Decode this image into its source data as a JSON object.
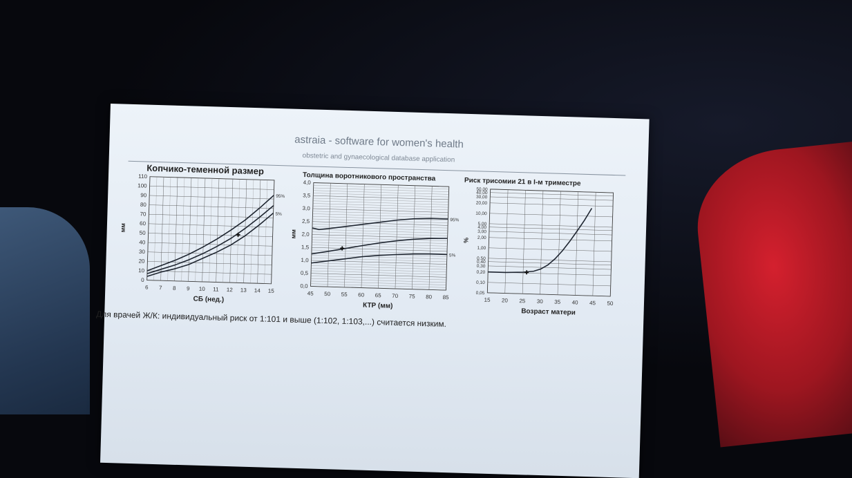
{
  "header": {
    "title": "astraia - software for women's health",
    "subtitle": "obstetric and gynaecological database application"
  },
  "footer": {
    "note": "Для врачей Ж/К: индивидуальный риск от 1:101 и выше (1:102, 1:103,...) считается низким."
  },
  "chart_data": [
    {
      "type": "line",
      "title": "Копчико-теменной размер",
      "xlabel": "СБ (нед.)",
      "ylabel": "мм",
      "xlim": [
        6,
        15
      ],
      "ylim": [
        0,
        110
      ],
      "x_ticks": [
        "6",
        "7",
        "8",
        "9",
        "10",
        "11",
        "12",
        "13",
        "14",
        "15"
      ],
      "y_ticks": [
        "0",
        "10",
        "20",
        "30",
        "40",
        "50",
        "60",
        "70",
        "80",
        "90",
        "100",
        "110"
      ],
      "grid": true,
      "series": [
        {
          "name": "95%",
          "x": [
            6,
            7,
            8,
            9,
            10,
            11,
            12,
            13,
            14,
            15
          ],
          "y": [
            10,
            16,
            22,
            29,
            37,
            46,
            56,
            67,
            80,
            94
          ]
        },
        {
          "name": "",
          "x": [
            6,
            7,
            8,
            9,
            10,
            11,
            12,
            13,
            14,
            15
          ],
          "y": [
            7,
            12,
            17,
            23,
            30,
            38,
            47,
            58,
            70,
            83
          ]
        },
        {
          "name": "5%",
          "x": [
            6,
            7,
            8,
            9,
            10,
            11,
            12,
            13,
            14,
            15
          ],
          "y": [
            4,
            9,
            13,
            18,
            25,
            32,
            40,
            50,
            62,
            75
          ]
        }
      ],
      "marker": {
        "x": 12.5,
        "y": 51
      }
    },
    {
      "type": "line",
      "title": "Толщина воротникового пространства",
      "xlabel": "КТР (мм)",
      "ylabel": "мм",
      "xlim": [
        45,
        85
      ],
      "ylim": [
        0,
        4
      ],
      "x_ticks": [
        "45",
        "50",
        "55",
        "60",
        "65",
        "70",
        "75",
        "80",
        "85"
      ],
      "y_ticks": [
        "0,0",
        "0,5",
        "1,0",
        "1,5",
        "2,0",
        "2,5",
        "3,0",
        "3,5",
        "4,0"
      ],
      "grid": true,
      "series": [
        {
          "name": "95%",
          "x": [
            45,
            47,
            50,
            55,
            60,
            65,
            70,
            75,
            80,
            85
          ],
          "y": [
            2.25,
            2.2,
            2.25,
            2.35,
            2.45,
            2.55,
            2.65,
            2.72,
            2.75,
            2.75
          ]
        },
        {
          "name": "",
          "x": [
            45,
            50,
            55,
            60,
            65,
            70,
            75,
            80,
            85
          ],
          "y": [
            1.25,
            1.37,
            1.5,
            1.63,
            1.75,
            1.85,
            1.93,
            1.98,
            2.0
          ]
        },
        {
          "name": "5%",
          "x": [
            45,
            50,
            55,
            60,
            65,
            70,
            75,
            80,
            85
          ],
          "y": [
            0.9,
            1.0,
            1.1,
            1.2,
            1.27,
            1.32,
            1.36,
            1.38,
            1.38
          ]
        }
      ],
      "marker": {
        "x": 54,
        "y": 1.5
      }
    },
    {
      "type": "line",
      "title": "Риск трисомии 21 в I-м триместре",
      "xlabel": "Возраст матери",
      "ylabel": "%",
      "xlim": [
        15,
        50
      ],
      "y_scale": "log",
      "ylim": [
        0.05,
        50
      ],
      "x_ticks": [
        "15",
        "20",
        "25",
        "30",
        "35",
        "40",
        "45",
        "50"
      ],
      "y_ticks": [
        {
          "value": 0.05,
          "label": "0,05"
        },
        {
          "value": 0.1,
          "label": "0,10"
        },
        {
          "value": 0.2,
          "label": "0,20"
        },
        {
          "value": 0.3,
          "label": "0,30"
        },
        {
          "value": 0.4,
          "label": "0,40"
        },
        {
          "value": 0.5,
          "label": "0,50"
        },
        {
          "value": 1,
          "label": "1,00"
        },
        {
          "value": 2,
          "label": "2,00"
        },
        {
          "value": 3,
          "label": "3,00"
        },
        {
          "value": 4,
          "label": "4,00"
        },
        {
          "value": 5,
          "label": "5,00"
        },
        {
          "value": 10,
          "label": "10,00"
        },
        {
          "value": 20,
          "label": "20,00"
        },
        {
          "value": 30,
          "label": "30,00"
        },
        {
          "value": 40,
          "label": "40,00"
        },
        {
          "value": 50,
          "label": "50,00"
        }
      ],
      "grid": true,
      "series": [
        {
          "name": "",
          "x": [
            15,
            20,
            25,
            28,
            30,
            32,
            34,
            36,
            38,
            40,
            42,
            44
          ],
          "y": [
            0.2,
            0.2,
            0.21,
            0.23,
            0.27,
            0.36,
            0.55,
            0.95,
            1.8,
            3.6,
            7.5,
            17
          ]
        }
      ],
      "marker": {
        "x": 26,
        "y": 0.21
      }
    }
  ]
}
